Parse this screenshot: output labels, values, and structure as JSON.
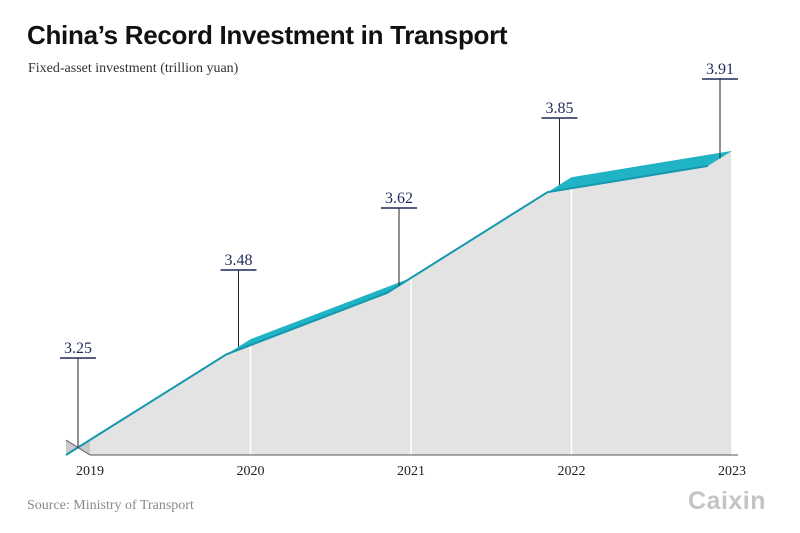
{
  "title": "China’s Record Investment in Transport",
  "subtitle": "Fixed-asset investment (trillion yuan)",
  "source": "Source: Ministry of Transport",
  "logo": "Caixin",
  "colors": {
    "ribbon_top": "#1598ae",
    "ribbon_face": "#20b2c5",
    "area": "#e3e3e3",
    "area_side": "#c9c9c9",
    "label": "#1f2a5a",
    "leader": "#222222",
    "gridline": "#ffffff"
  },
  "chart_data": {
    "type": "area",
    "title": "China’s Record Investment in Transport",
    "ylabel": "Fixed-asset investment (trillion yuan)",
    "xlabel": "",
    "x": [
      "2019",
      "2020",
      "2021",
      "2022",
      "2023"
    ],
    "series": [
      {
        "values": [
          3.25,
          3.48,
          3.62,
          3.85,
          3.91
        ]
      }
    ],
    "labels": [
      "3.25",
      "3.48",
      "3.62",
      "3.85",
      "3.91"
    ],
    "ylim": [
      3.15,
      3.95
    ],
    "grid": false,
    "legend": "none",
    "style": "3d-ribbon"
  }
}
